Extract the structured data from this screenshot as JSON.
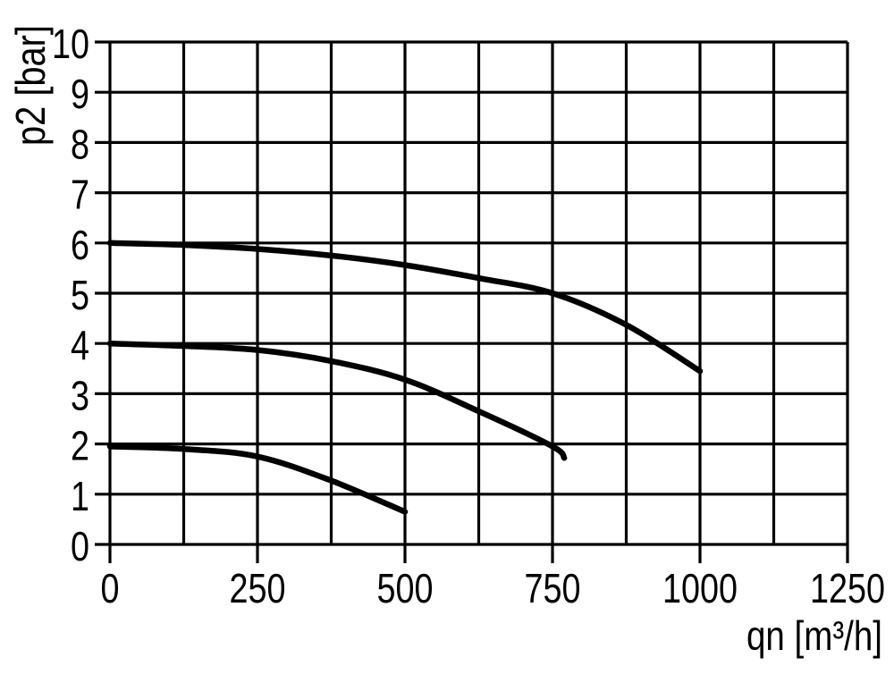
{
  "chart_data": {
    "type": "line",
    "title": "",
    "xlabel": "qn [m³/h]",
    "ylabel": "p2 [bar]",
    "xlim": [
      0,
      1250
    ],
    "ylim": [
      0,
      10
    ],
    "x_tick_labels": [
      "0",
      "250",
      "500",
      "750",
      "1000",
      "1250"
    ],
    "x_tick_values": [
      0,
      250,
      500,
      750,
      1000,
      1250
    ],
    "x_minor_step": 125,
    "y_tick_labels": [
      "0",
      "1",
      "2",
      "3",
      "4",
      "5",
      "6",
      "7",
      "8",
      "9",
      "10"
    ],
    "y_tick_values": [
      0,
      1,
      2,
      3,
      4,
      5,
      6,
      7,
      8,
      9,
      10
    ],
    "grid": "both",
    "legend": "none",
    "background_color": "#ffffff",
    "line_color": "#000000",
    "series": [
      {
        "points": [
          [
            0,
            6.0
          ],
          [
            125,
            5.96
          ],
          [
            250,
            5.88
          ],
          [
            375,
            5.75
          ],
          [
            500,
            5.56
          ],
          [
            625,
            5.3
          ],
          [
            750,
            5.0
          ],
          [
            875,
            4.37
          ],
          [
            1000,
            3.45
          ]
        ]
      },
      {
        "points": [
          [
            0,
            4.0
          ],
          [
            125,
            3.95
          ],
          [
            250,
            3.87
          ],
          [
            375,
            3.65
          ],
          [
            500,
            3.28
          ],
          [
            625,
            2.65
          ],
          [
            750,
            1.95
          ],
          [
            770,
            1.72
          ]
        ]
      },
      {
        "points": [
          [
            0,
            1.95
          ],
          [
            125,
            1.9
          ],
          [
            250,
            1.75
          ],
          [
            375,
            1.27
          ],
          [
            500,
            0.65
          ]
        ]
      }
    ]
  }
}
